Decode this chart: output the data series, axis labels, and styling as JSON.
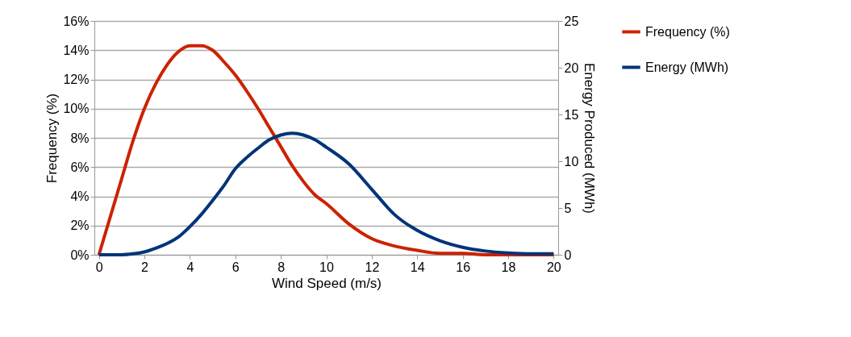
{
  "chart_data": {
    "type": "line",
    "xlabel": "Wind Speed (m/s)",
    "ylabel": "Frequency (%)",
    "y2label": "Energy Produced (MWh)",
    "xlim": [
      -0.2,
      20.2
    ],
    "xticks": [
      0,
      2,
      4,
      6,
      8,
      10,
      12,
      14,
      16,
      18,
      20
    ],
    "ylim": [
      0,
      16
    ],
    "yticks": [
      {
        "value": 0,
        "label": "0%"
      },
      {
        "value": 2,
        "label": "2%"
      },
      {
        "value": 4,
        "label": "4%"
      },
      {
        "value": 6,
        "label": "6%"
      },
      {
        "value": 8,
        "label": "8%"
      },
      {
        "value": 10,
        "label": "10%"
      },
      {
        "value": 12,
        "label": "12%"
      },
      {
        "value": 14,
        "label": "14%"
      },
      {
        "value": 16,
        "label": "16%"
      }
    ],
    "y2lim": [
      0,
      25
    ],
    "y2ticks": [
      0,
      5,
      10,
      15,
      20,
      25
    ],
    "grid": "y",
    "legend": "right",
    "marker": "none",
    "line_style": "solid",
    "series": [
      {
        "name": "Frequency (%)",
        "color": "#cc2200",
        "x": [
          0,
          1,
          1.5,
          2,
          2.5,
          3,
          3.5,
          4,
          4.5,
          5,
          5.5,
          6,
          6.5,
          7,
          7.5,
          8,
          8.5,
          9,
          9.5,
          10,
          11,
          12,
          13,
          14,
          15,
          16,
          17,
          18,
          19,
          20
        ],
        "values": [
          0,
          5.2,
          7.8,
          10.0,
          11.7,
          13.0,
          13.9,
          14.3,
          14.3,
          14.0,
          13.2,
          12.3,
          11.2,
          10.0,
          8.7,
          7.4,
          6.1,
          5.0,
          4.1,
          3.5,
          2.1,
          1.1,
          0.6,
          0.3,
          0.1,
          0.1,
          0,
          0,
          0,
          0
        ]
      },
      {
        "name": "Energy (MWh)",
        "color": "#003478",
        "axis": "y2",
        "x": [
          0,
          1,
          1.5,
          2,
          2.5,
          3,
          3.5,
          4,
          4.5,
          5,
          5.5,
          6,
          6.5,
          7,
          7.5,
          8,
          8.5,
          9,
          9.5,
          10,
          11,
          12,
          13,
          14,
          15,
          16,
          17,
          18,
          19,
          20
        ],
        "values": [
          0,
          0,
          0.1,
          0.3,
          0.7,
          1.2,
          1.9,
          3.0,
          4.3,
          5.8,
          7.4,
          9.2,
          10.4,
          11.4,
          12.3,
          12.8,
          13.0,
          12.8,
          12.3,
          11.5,
          9.7,
          7.0,
          4.3,
          2.6,
          1.5,
          0.8,
          0.4,
          0.2,
          0.1,
          0.1
        ]
      }
    ]
  }
}
